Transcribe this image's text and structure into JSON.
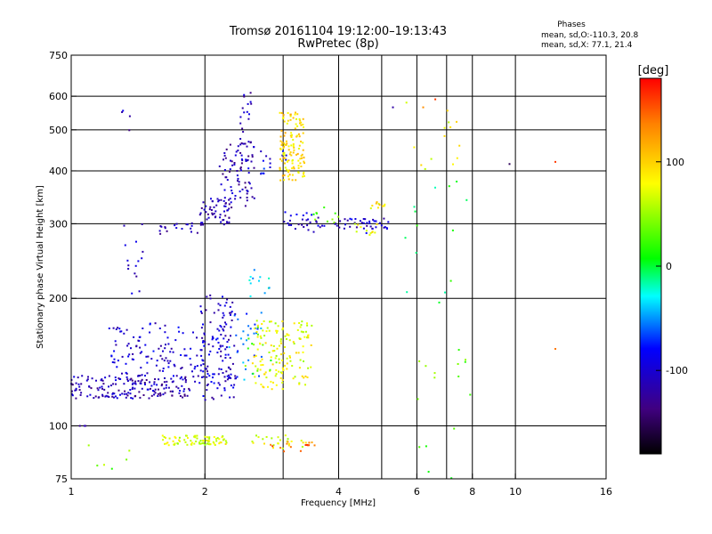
{
  "chart_data": {
    "type": "scatter",
    "title": "Tromsø 20161104  19:12:00–19:13:43",
    "subtitle": "RwPretec (8p)",
    "xlabel": "Frequency [MHz]",
    "ylabel": "Stationary phase Virtual Height [km]",
    "x_scale": "log",
    "y_scale": "log",
    "xlim": [
      1,
      16
    ],
    "ylim": [
      75,
      750
    ],
    "x_ticks": [
      1,
      2,
      4,
      6,
      8,
      10,
      16
    ],
    "x_tick_labels": [
      "1",
      "2",
      "4",
      "6",
      "8",
      "10",
      "16"
    ],
    "y_ticks": [
      75,
      100,
      200,
      300,
      400,
      500,
      600,
      750
    ],
    "y_tick_labels": [
      "75",
      "100",
      "200",
      "300",
      "400",
      "500",
      "600",
      "750"
    ],
    "grid": true,
    "stats": {
      "heading": "Phases",
      "line_o": "mean, sd,O:-110.3, 20.8",
      "line_x": "mean, sd,X:  77.1, 21.4"
    },
    "colorbar": {
      "label": "[deg]",
      "range": [
        -180,
        180
      ],
      "ticks": [
        100,
        0,
        -100
      ],
      "tick_labels": [
        "100",
        "0",
        "-100"
      ],
      "colors": [
        "#ff0000",
        "#ff8000",
        "#ffff00",
        "#00ff00",
        "#00ffff",
        "#0000ff",
        "#400080",
        "#000000"
      ]
    },
    "clusters": [
      {
        "x": [
          1.0,
          1.1
        ],
        "y": [
          100,
          100
        ],
        "n": 3,
        "phase": -110
      },
      {
        "x": [
          1.0,
          1.85
        ],
        "y": [
          116,
          132
        ],
        "n": 170,
        "phase": -115
      },
      {
        "x": [
          1.2,
          2.3
        ],
        "y": [
          125,
          175
        ],
        "n": 170,
        "phase": -100
      },
      {
        "x": [
          1.95,
          2.35
        ],
        "y": [
          115,
          205
        ],
        "n": 90,
        "phase": -105
      },
      {
        "x": [
          2.25,
          2.7
        ],
        "y": [
          128,
          185
        ],
        "n": 30,
        "phase": -60
      },
      {
        "x": [
          2.55,
          3.5
        ],
        "y": [
          122,
          178
        ],
        "n": 140,
        "phase": 75
      },
      {
        "x": [
          2.45,
          2.9
        ],
        "y": [
          130,
          175
        ],
        "n": 15,
        "phase": 30
      },
      {
        "x": [
          1.6,
          2.25
        ],
        "y": [
          90,
          95
        ],
        "n": 80,
        "phase": 70
      },
      {
        "x": [
          2.4,
          3.4
        ],
        "y": [
          88,
          95
        ],
        "n": 25,
        "phase": 75
      },
      {
        "x": [
          2.8,
          3.6
        ],
        "y": [
          87,
          92
        ],
        "n": 15,
        "phase": 140
      },
      {
        "x": [
          1.55,
          2.0
        ],
        "y": [
          282,
          302
        ],
        "n": 20,
        "phase": -110
      },
      {
        "x": [
          1.95,
          2.3
        ],
        "y": [
          295,
          345
        ],
        "n": 55,
        "phase": -115
      },
      {
        "x": [
          2.15,
          2.6
        ],
        "y": [
          330,
          470
        ],
        "n": 70,
        "phase": -115
      },
      {
        "x": [
          2.4,
          2.55
        ],
        "y": [
          400,
          620
        ],
        "n": 30,
        "phase": -110
      },
      {
        "x": [
          2.65,
          3.05
        ],
        "y": [
          390,
          450
        ],
        "n": 15,
        "phase": -90
      },
      {
        "x": [
          2.95,
          3.35
        ],
        "y": [
          380,
          550
        ],
        "n": 130,
        "phase": 95
      },
      {
        "x": [
          3.0,
          3.6
        ],
        "y": [
          290,
          320
        ],
        "n": 25,
        "phase": -105
      },
      {
        "x": [
          3.5,
          4.5
        ],
        "y": [
          285,
          310
        ],
        "n": 20,
        "phase": -100
      },
      {
        "x": [
          3.5,
          4.0
        ],
        "y": [
          300,
          330
        ],
        "n": 10,
        "phase": 30
      },
      {
        "x": [
          4.3,
          5.0
        ],
        "y": [
          280,
          300
        ],
        "n": 12,
        "phase": 75
      },
      {
        "x": [
          4.5,
          5.2
        ],
        "y": [
          285,
          310
        ],
        "n": 25,
        "phase": -105
      },
      {
        "x": [
          4.7,
          5.1
        ],
        "y": [
          325,
          340
        ],
        "n": 10,
        "phase": 85
      },
      {
        "x": [
          1.3,
          1.45
        ],
        "y": [
          200,
          300
        ],
        "n": 15,
        "phase": -105
      },
      {
        "x": [
          2.4,
          2.8
        ],
        "y": [
          200,
          240
        ],
        "n": 12,
        "phase": -30
      },
      {
        "x": [
          5.3,
          8.0
        ],
        "y": [
          400,
          580
        ],
        "n": 14,
        "phase": 80
      },
      {
        "x": [
          5.3,
          7.8
        ],
        "y": [
          180,
          380
        ],
        "n": 14,
        "phase": 0
      },
      {
        "x": [
          6.0,
          8.0
        ],
        "y": [
          75,
          160
        ],
        "n": 16,
        "phase": 30
      },
      {
        "x": [
          1.05,
          1.4
        ],
        "y": [
          75,
          95
        ],
        "n": 6,
        "phase": 40
      },
      {
        "x": [
          1.3,
          1.4
        ],
        "y": [
          470,
          570
        ],
        "n": 4,
        "phase": -110
      }
    ],
    "points": [
      {
        "x": 9.7,
        "y": 415,
        "phase": -150
      },
      {
        "x": 12.3,
        "y": 420,
        "phase": 160
      },
      {
        "x": 12.3,
        "y": 152,
        "phase": 140
      },
      {
        "x": 6.2,
        "y": 565,
        "phase": 130
      },
      {
        "x": 6.6,
        "y": 590,
        "phase": 160
      },
      {
        "x": 5.3,
        "y": 565,
        "phase": -120
      }
    ]
  }
}
